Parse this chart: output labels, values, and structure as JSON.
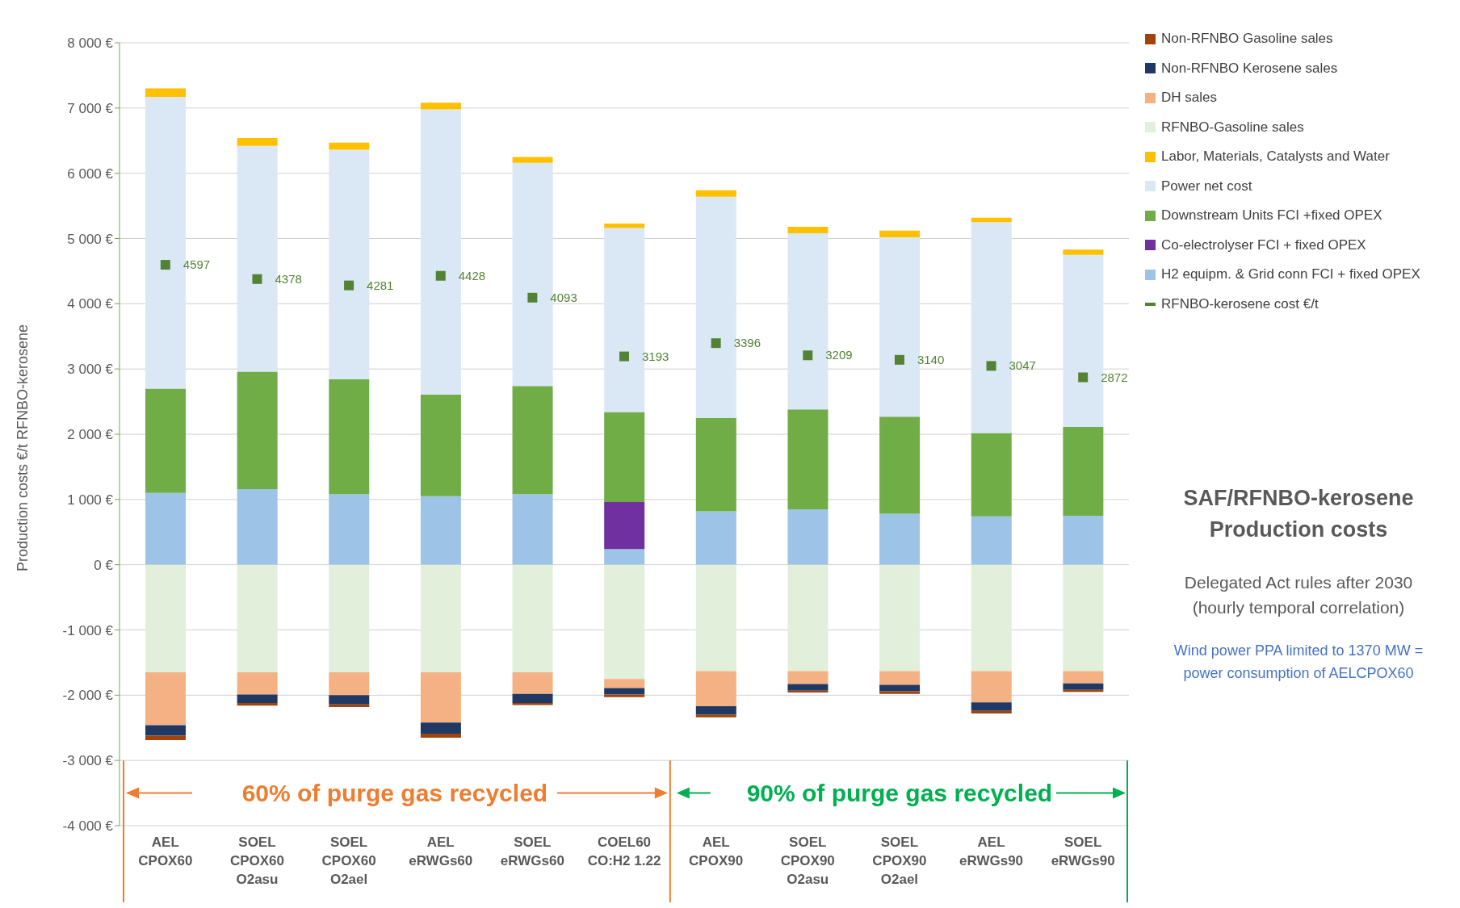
{
  "chart_data": {
    "type": "bar",
    "title": "SAF/RFNBO-kerosene Production costs",
    "subtitle": "Delegated Act rules after 2030 (hourly temporal correlation)",
    "ylabel": "Production costs €/t RFNBO-kerosene",
    "annotations": [
      "60% of purge gas recycled",
      "90% of purge gas recycled",
      "Wind power PPA limited to 1370 MW = power consumption of AELCPOX60"
    ],
    "categories": [
      "AEL\nCPOX60",
      "SOEL\nCPOX60\nO2asu",
      "SOEL\nCPOX60\nO2ael",
      "AEL\neRWGs60",
      "SOEL\neRWGs60",
      "COEL60\nCO:H2 1.22",
      "AEL\nCPOX90",
      "SOEL\nCPOX90\nO2asu",
      "SOEL\nCPOX90\nO2ael",
      "AEL\neRWGs90",
      "SOEL\neRWGs90"
    ],
    "stacked": true,
    "series": [
      {
        "name": "H2 equipm. & Grid conn FCI + fixed OPEX",
        "color": "#9dc3e6",
        "values": [
          1100,
          1160,
          1080,
          1050,
          1080,
          240,
          820,
          850,
          780,
          740,
          750
        ]
      },
      {
        "name": "Co-electrolyser FCI + fixed OPEX",
        "color": "#7030a0",
        "values": [
          null,
          null,
          null,
          null,
          null,
          720,
          null,
          null,
          null,
          null,
          null
        ]
      },
      {
        "name": "Downstream Units FCI +fixed OPEX",
        "color": "#70ad47",
        "values": [
          1600,
          1800,
          1760,
          1560,
          1660,
          1380,
          1430,
          1530,
          1490,
          1280,
          1360
        ]
      },
      {
        "name": "Power net cost",
        "color": "#dae8f5",
        "values": [
          4470,
          3460,
          3520,
          4370,
          3420,
          2820,
          3390,
          2700,
          2750,
          3230,
          2640
        ]
      },
      {
        "name": "Labor, Materials, Catalysts and Water",
        "color": "#ffc000",
        "values": [
          130,
          120,
          110,
          100,
          90,
          70,
          100,
          100,
          100,
          70,
          80
        ]
      },
      {
        "name": "RFNBO-Gasoline sales",
        "color": "#e2efda",
        "values": [
          -1650,
          -1650,
          -1650,
          -1650,
          -1650,
          -1750,
          -1630,
          -1630,
          -1630,
          -1630,
          -1630
        ]
      },
      {
        "name": "DH sales",
        "color": "#f4b183",
        "values": [
          -810,
          -340,
          -350,
          -770,
          -330,
          -140,
          -540,
          -200,
          -210,
          -480,
          -190
        ]
      },
      {
        "name": "Non-RFNBO Kerosene sales",
        "color": "#203864",
        "values": [
          -160,
          -130,
          -140,
          -170,
          -140,
          -100,
          -130,
          -100,
          -100,
          -130,
          -100
        ]
      },
      {
        "name": "Non-RFNBO Gasoline sales",
        "color": "#a0440c",
        "values": [
          -70,
          -40,
          -40,
          -60,
          -30,
          -40,
          -40,
          -30,
          -40,
          -40,
          -30
        ]
      },
      {
        "name": "RFNBO-kerosene cost €/t",
        "type": "scatter",
        "marker": "square",
        "color": "#548235",
        "data_labels": true,
        "values": [
          4597,
          4378,
          4281,
          4428,
          4093,
          3193,
          3396,
          3209,
          3140,
          3047,
          2872
        ]
      }
    ],
    "ylim": [
      -4000,
      8000
    ],
    "yticks": [
      {
        "value": -4000,
        "label": "-4 000 €"
      },
      {
        "value": -3000,
        "label": "-3 000 €"
      },
      {
        "value": -2000,
        "label": "-2 000 €"
      },
      {
        "value": -1000,
        "label": "-1 000 €"
      },
      {
        "value": 0,
        "label": "0 €"
      },
      {
        "value": 1000,
        "label": "1 000 €"
      },
      {
        "value": 2000,
        "label": "2 000 €"
      },
      {
        "value": 3000,
        "label": "3 000 €"
      },
      {
        "value": 4000,
        "label": "4 000 €"
      },
      {
        "value": 5000,
        "label": "5 000 €"
      },
      {
        "value": 6000,
        "label": "6 000 €"
      },
      {
        "value": 7000,
        "label": "7 000 €"
      },
      {
        "value": 8000,
        "label": "8 000 €"
      }
    ],
    "grid": "y",
    "legend": "top right"
  }
}
